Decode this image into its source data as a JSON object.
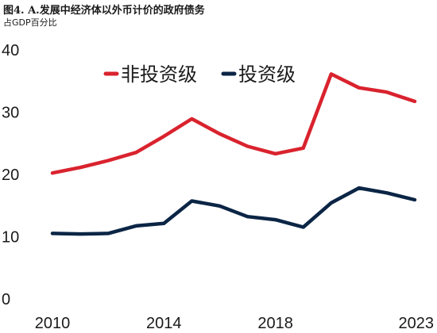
{
  "header": {
    "title": "图4. A.发展中经济体以外币计价的政府债务",
    "subtitle": "占GDP百分比"
  },
  "chart_data": {
    "type": "line",
    "title": "图4. A.发展中经济体以外币计价的政府债务",
    "subtitle": "占GDP百分比",
    "xlabel": "",
    "ylabel": "",
    "x": [
      2010,
      2011,
      2012,
      2013,
      2014,
      2015,
      2016,
      2017,
      2018,
      2019,
      2020,
      2021,
      2022,
      2023
    ],
    "x_tick_labels": [
      "2010",
      "2014",
      "2018",
      "2023"
    ],
    "x_ticks": [
      2010,
      2014,
      2018,
      2023
    ],
    "ylim": [
      0,
      40
    ],
    "y_ticks": [
      0,
      10,
      20,
      30,
      40
    ],
    "y_tick_labels": [
      "0",
      "10",
      "20",
      "30",
      "40"
    ],
    "grid": false,
    "legend_position": "top",
    "series": [
      {
        "name": "非投资级",
        "color": "#d9232e",
        "values": [
          20.1,
          21.0,
          22.1,
          23.4,
          26.0,
          28.8,
          26.4,
          24.4,
          23.2,
          24.1,
          36.0,
          33.8,
          33.1,
          31.6
        ]
      },
      {
        "name": "投资级",
        "color": "#0b2545",
        "values": [
          10.4,
          10.3,
          10.4,
          11.6,
          12.0,
          15.6,
          14.8,
          13.1,
          12.6,
          11.4,
          15.3,
          17.7,
          16.9,
          15.8
        ]
      }
    ]
  }
}
